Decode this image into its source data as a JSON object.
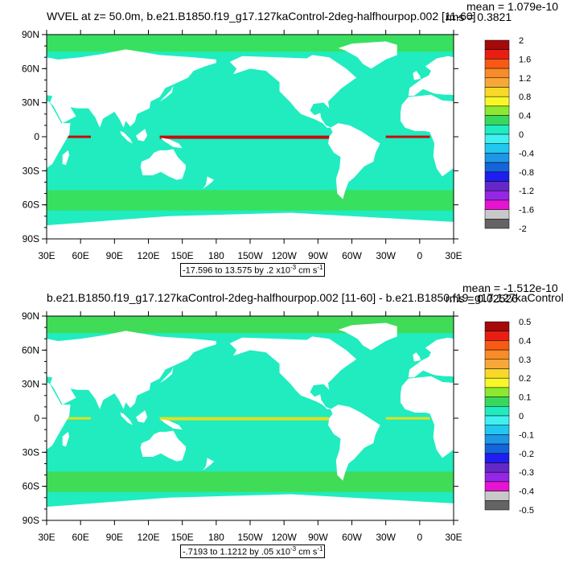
{
  "panels": [
    {
      "title": "WVEL at z=  50.0m, b.e21.B1850.f19_g17.127kaControl-2deg-halfhourpop.002 [11-60]",
      "mean": "mean = 1.079e-10",
      "rms": "rms = 0.3821",
      "range_text": "-17.596 to 13.575 by .2 x10",
      "range_exp": "-3",
      "range_unit": " cm s",
      "range_unit_exp": "-1",
      "colorbar_labels": [
        "2",
        "1.6",
        "1.2",
        "0.8",
        "0.4",
        "0",
        "-0.4",
        "-0.8",
        "-1.2",
        "-1.6",
        "-2"
      ],
      "ocean_color": "#20ecc0",
      "band_color": "#38e060",
      "equator_color": "#c80a0a"
    },
    {
      "title": "b.e21.B1850.f19_g17.127kaControl-2deg-halfhourpop.002 [11-60] - b.e21.B1850.f19_g17.127kaControl-",
      "mean": "mean = -1.512e-10",
      "rms": "rms = 0.02526",
      "range_text": "-.7193 to 1.1212 by .05 x10",
      "range_exp": "-3",
      "range_unit": " cm s",
      "range_unit_exp": "-1",
      "colorbar_labels": [
        "0.5",
        "0.4",
        "0.3",
        "0.2",
        "0.1",
        "0",
        "-0.1",
        "-0.2",
        "-0.3",
        "-0.4",
        "-0.5"
      ],
      "ocean_color": "#20ecc0",
      "band_color": "#40dc58",
      "equator_color": "#e0e020"
    }
  ],
  "lat_labels": [
    "90N",
    "60N",
    "30N",
    "0",
    "30S",
    "60S",
    "90S"
  ],
  "lon_labels": [
    "30E",
    "60E",
    "90E",
    "120E",
    "150E",
    "180",
    "150W",
    "120W",
    "90W",
    "60W",
    "30W",
    "0",
    "30E"
  ],
  "colorbar_colors": [
    "#a50a0a",
    "#e81e14",
    "#f85a14",
    "#f88c28",
    "#f8a838",
    "#f8d828",
    "#f8f828",
    "#8ce830",
    "#38d85c",
    "#20ecc0",
    "#40f0f0",
    "#20c8f0",
    "#1e96e6",
    "#1464dc",
    "#1e1ef0",
    "#6428c8",
    "#9626e6",
    "#e614d2",
    "#c8c8c8",
    "#646464"
  ]
}
